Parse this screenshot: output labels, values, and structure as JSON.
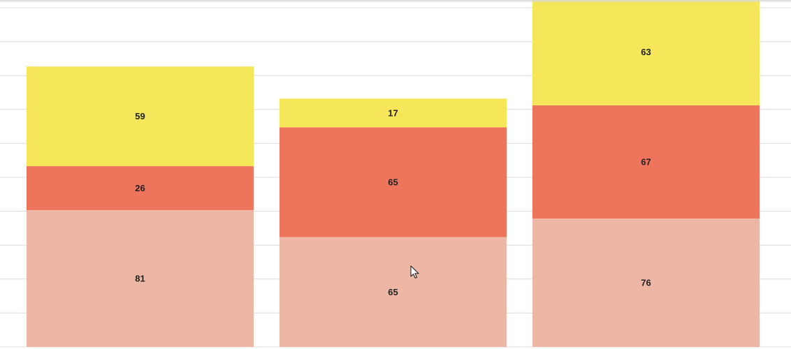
{
  "chart_data": {
    "type": "bar",
    "stacked": true,
    "title": "",
    "xlabel": "",
    "ylabel": "",
    "grid": true,
    "categories": [
      "",
      "",
      ""
    ],
    "series": [
      {
        "values": [
          81,
          65,
          76
        ],
        "color": "#eeb6a4"
      },
      {
        "values": [
          26,
          65,
          67
        ],
        "color": "#ef745c"
      },
      {
        "values": [
          59,
          17,
          63
        ],
        "color": "#f5e65a"
      }
    ]
  }
}
